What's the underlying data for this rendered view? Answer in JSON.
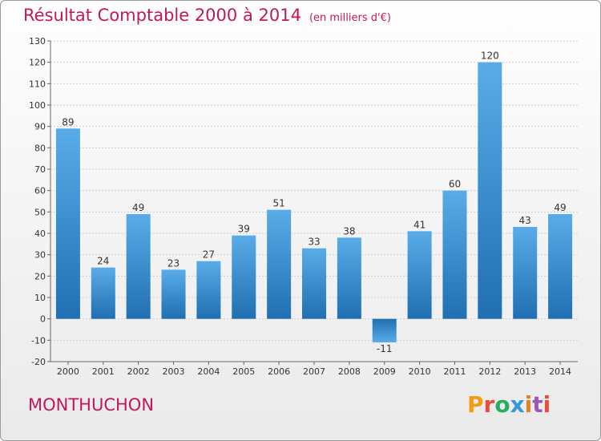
{
  "header": {
    "title": "Résultat Comptable 2000 à 2014",
    "unit": "(en milliers d'€)"
  },
  "footer": {
    "commune": "MONTHUCHON",
    "logo_text": "Proxiti",
    "logo_colors": [
      "#f39c12",
      "#e74c3c",
      "#27ae60",
      "#3498db",
      "#e67e22",
      "#9b59b6",
      "#e74c3c"
    ]
  },
  "colors": {
    "accent": "#c2185b",
    "bar_light": "#5aace8",
    "bar_dark": "#1f6fb2"
  },
  "chart_data": {
    "type": "bar",
    "categories": [
      "2000",
      "2001",
      "2002",
      "2003",
      "2004",
      "2005",
      "2006",
      "2007",
      "2008",
      "2009",
      "2010",
      "2011",
      "2012",
      "2013",
      "2014"
    ],
    "values": [
      89,
      24,
      49,
      23,
      27,
      39,
      51,
      33,
      38,
      -11,
      41,
      60,
      120,
      43,
      49
    ],
    "data_labels": [
      "89",
      "24",
      "49",
      "23",
      "27",
      "39",
      "51",
      "33",
      "38",
      "-11",
      "41",
      "60",
      "120",
      "43",
      "49"
    ],
    "title": "Résultat Comptable 2000 à 2014",
    "ylim": [
      -20,
      130
    ],
    "yticks": [
      -20,
      -10,
      0,
      10,
      20,
      30,
      40,
      50,
      60,
      70,
      80,
      90,
      100,
      110,
      120,
      130
    ],
    "grid": true
  }
}
